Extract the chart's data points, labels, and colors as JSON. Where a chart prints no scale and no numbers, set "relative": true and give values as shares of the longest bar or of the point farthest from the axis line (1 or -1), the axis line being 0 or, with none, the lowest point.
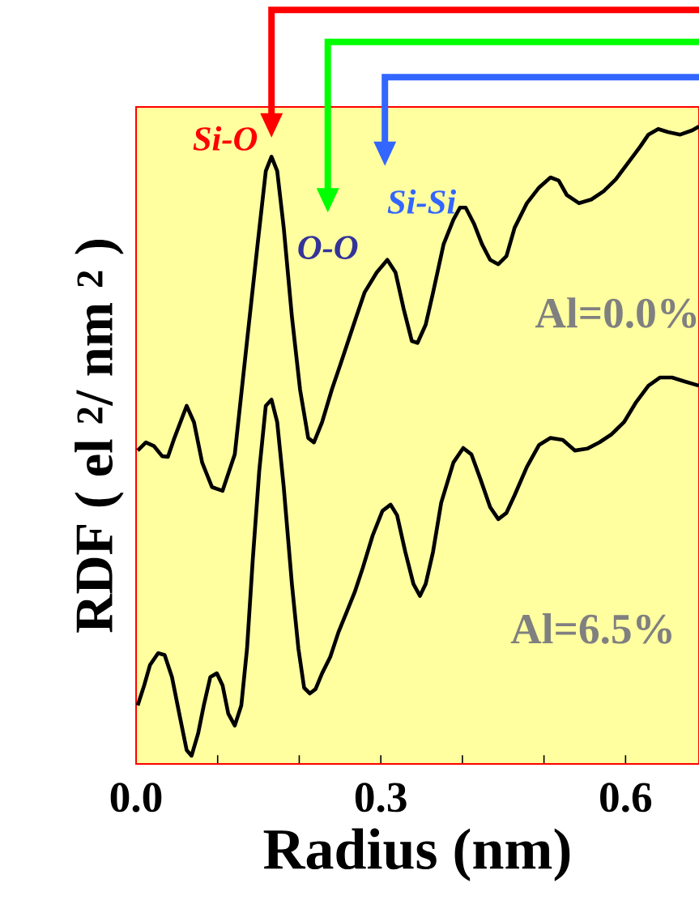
{
  "chart_data": {
    "type": "line",
    "relative": true,
    "xlabel": "Radius (nm)",
    "ylabel": "RDF ( el $^{2}$/ nm $^{2}$ )",
    "xlim": [
      0,
      0.69
    ],
    "xticks": [
      {
        "value": 0,
        "label": "0.0"
      },
      {
        "value": 0.1,
        "label": null
      },
      {
        "value": 0.2,
        "label": null
      },
      0.3,
      {
        "value": 0.4,
        "label": null
      },
      {
        "value": 0.5,
        "label": null
      },
      0.6
    ],
    "grid": false,
    "marker": "none",
    "line_style": "solid",
    "x": [
      0.002,
      0.012,
      0.022,
      0.032,
      0.039,
      0.047,
      0.062,
      0.071,
      0.081,
      0.093,
      0.106,
      0.121,
      0.136,
      0.149,
      0.159,
      0.166,
      0.173,
      0.181,
      0.191,
      0.201,
      0.211,
      0.218,
      0.228,
      0.24,
      0.25,
      0.26,
      0.27,
      0.28,
      0.295,
      0.308,
      0.318,
      0.328,
      0.338,
      0.345,
      0.355,
      0.364,
      0.377,
      0.389,
      0.397,
      0.404,
      0.414,
      0.424,
      0.434,
      0.444,
      0.454,
      0.464,
      0.479,
      0.494,
      0.508,
      0.518,
      0.528,
      0.543,
      0.558,
      0.573,
      0.588,
      0.603,
      0.618,
      0.628,
      0.64,
      0.652,
      0.667,
      0.682,
      0.69
    ],
    "series": [
      {
        "name": "Al=0.0%",
        "color": "#000000",
        "values": [
          0.485,
          0.498,
          0.492,
          0.476,
          0.475,
          0.505,
          0.556,
          0.53,
          0.466,
          0.427,
          0.421,
          0.479,
          0.659,
          0.813,
          0.929,
          0.952,
          0.929,
          0.839,
          0.698,
          0.582,
          0.505,
          0.498,
          0.53,
          0.582,
          0.62,
          0.659,
          0.698,
          0.736,
          0.768,
          0.788,
          0.768,
          0.71,
          0.659,
          0.656,
          0.685,
          0.736,
          0.813,
          0.852,
          0.871,
          0.871,
          0.846,
          0.813,
          0.788,
          0.781,
          0.794,
          0.839,
          0.878,
          0.903,
          0.919,
          0.914,
          0.891,
          0.878,
          0.884,
          0.897,
          0.916,
          0.942,
          0.968,
          0.987,
          0.996,
          0.991,
          0.987,
          0.994,
          1.0
        ]
      },
      {
        "name": "Al=6.5%",
        "color": "#000000",
        "x": [
          0.002,
          0.01,
          0.017,
          0.027,
          0.035,
          0.044,
          0.054,
          0.062,
          0.068,
          0.076,
          0.083,
          0.091,
          0.099,
          0.106,
          0.113,
          0.121,
          0.129,
          0.136,
          0.143,
          0.151,
          0.159,
          0.166,
          0.173,
          0.181,
          0.191,
          0.199,
          0.206,
          0.213,
          0.22,
          0.228,
          0.238,
          0.248,
          0.258,
          0.268,
          0.278,
          0.29,
          0.302,
          0.312,
          0.32,
          0.33,
          0.34,
          0.348,
          0.355,
          0.364,
          0.374,
          0.389,
          0.401,
          0.411,
          0.422,
          0.434,
          0.444,
          0.454,
          0.464,
          0.479,
          0.494,
          0.508,
          0.523,
          0.538,
          0.553,
          0.568,
          0.583,
          0.598,
          0.613,
          0.628,
          0.642,
          0.657,
          0.672,
          0.69
        ],
        "values": [
          0.08,
          0.112,
          0.144,
          0.163,
          0.16,
          0.125,
          0.06,
          0.009,
          0.0,
          0.035,
          0.08,
          0.125,
          0.131,
          0.112,
          0.067,
          0.048,
          0.08,
          0.17,
          0.311,
          0.453,
          0.556,
          0.566,
          0.53,
          0.427,
          0.273,
          0.17,
          0.108,
          0.099,
          0.106,
          0.131,
          0.157,
          0.196,
          0.228,
          0.26,
          0.299,
          0.35,
          0.389,
          0.399,
          0.382,
          0.324,
          0.273,
          0.254,
          0.273,
          0.324,
          0.402,
          0.466,
          0.489,
          0.479,
          0.44,
          0.395,
          0.376,
          0.386,
          0.414,
          0.459,
          0.494,
          0.505,
          0.502,
          0.485,
          0.488,
          0.498,
          0.511,
          0.53,
          0.562,
          0.588,
          0.601,
          0.601,
          0.595,
          0.588
        ]
      }
    ],
    "annotations": [
      "Si-O",
      "O-O",
      "Si-Si"
    ]
  }
}
